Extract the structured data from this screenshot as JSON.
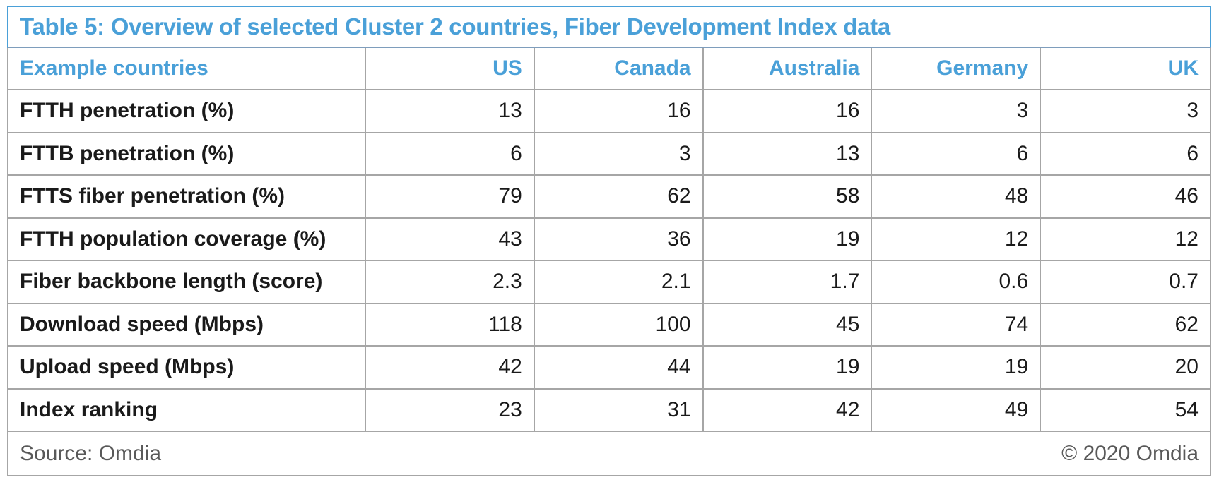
{
  "chart_data": {
    "type": "table",
    "title": "Table 5: Overview of selected Cluster 2 countries, Fiber Development Index data",
    "row_header_label": "Example countries",
    "columns": [
      "US",
      "Canada",
      "Australia",
      "Germany",
      "UK"
    ],
    "rows": [
      {
        "label": "FTTH penetration (%)",
        "values": [
          "13",
          "16",
          "16",
          "3",
          "3"
        ]
      },
      {
        "label": "FTTB penetration (%)",
        "values": [
          "6",
          "3",
          "13",
          "6",
          "6"
        ]
      },
      {
        "label": "FTTS fiber penetration (%)",
        "values": [
          "79",
          "62",
          "58",
          "48",
          "46"
        ]
      },
      {
        "label": "FTTH population coverage (%)",
        "values": [
          "43",
          "36",
          "19",
          "12",
          "12"
        ]
      },
      {
        "label": "Fiber backbone length (score)",
        "values": [
          "2.3",
          "2.1",
          "1.7",
          "0.6",
          "0.7"
        ]
      },
      {
        "label": "Download speed (Mbps)",
        "values": [
          "118",
          "100",
          "45",
          "74",
          "62"
        ]
      },
      {
        "label": "Upload speed (Mbps)",
        "values": [
          "42",
          "44",
          "19",
          "19",
          "20"
        ]
      },
      {
        "label": "Index ranking",
        "values": [
          "23",
          "31",
          "42",
          "49",
          "54"
        ]
      }
    ],
    "source": "Source: Omdia",
    "copyright": "© 2020 Omdia"
  },
  "colors": {
    "accent_blue": "#4AA0D8",
    "title_divider_blue": "#7E9DBC",
    "grid_gray": "#A6A6A6",
    "body_text": "#1A1A1A",
    "footer_gray": "#595959"
  }
}
